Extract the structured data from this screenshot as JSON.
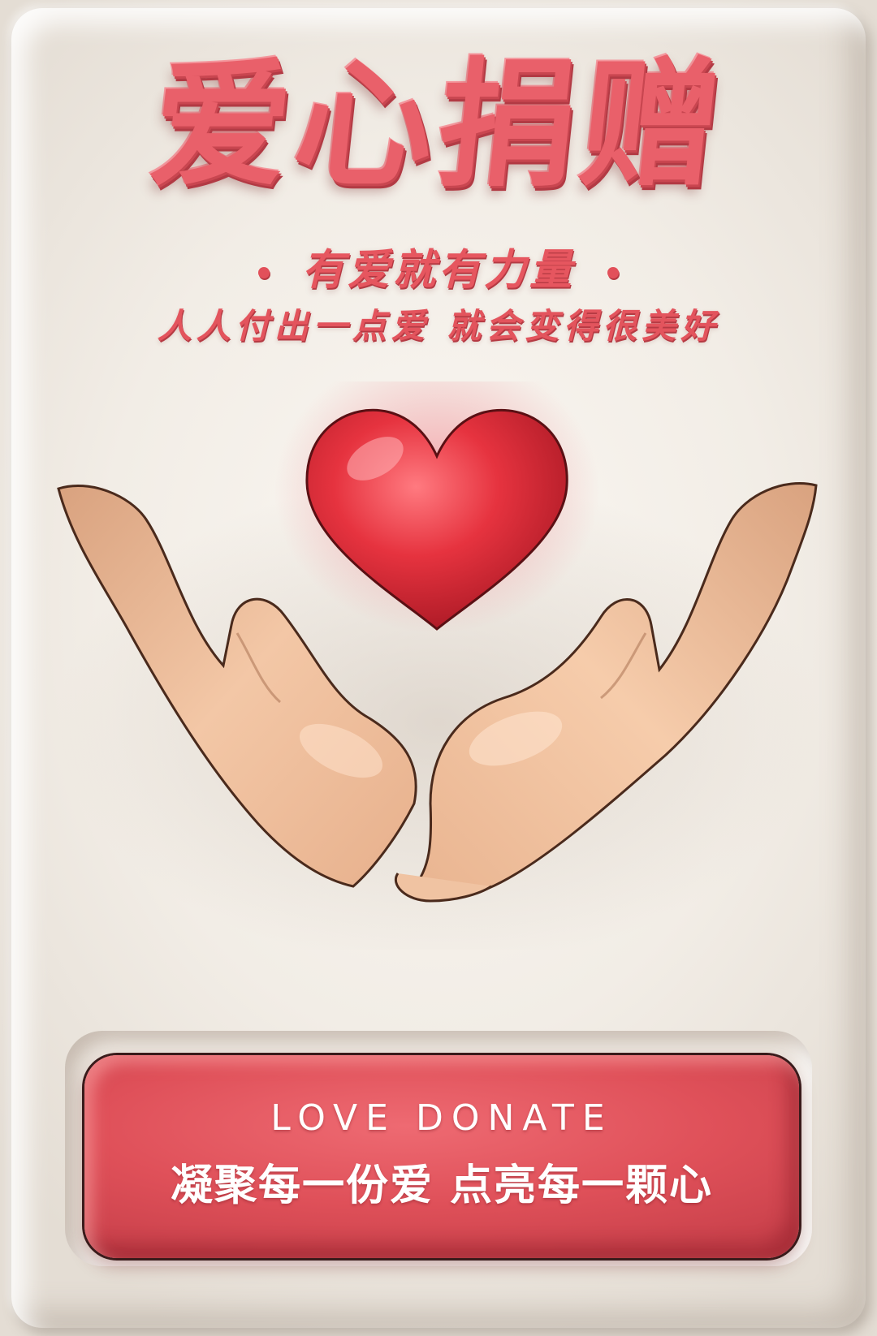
{
  "poster": {
    "title": "爱心捐赠",
    "tagline": "有爱就有力量",
    "subtitle": "人人付出一点爱 就会变得很美好"
  },
  "donate_button": {
    "label_en": "LOVE  DONATE",
    "label_cn": "凝聚每一份爱 点亮每一颗心"
  },
  "colors": {
    "accent": "#e9606a",
    "heart": "#e0333f",
    "skin": "#efc19f",
    "background": "#f2ede6"
  },
  "icons": {
    "heart": "heart-icon",
    "hands": "cupped-hands-icon"
  }
}
